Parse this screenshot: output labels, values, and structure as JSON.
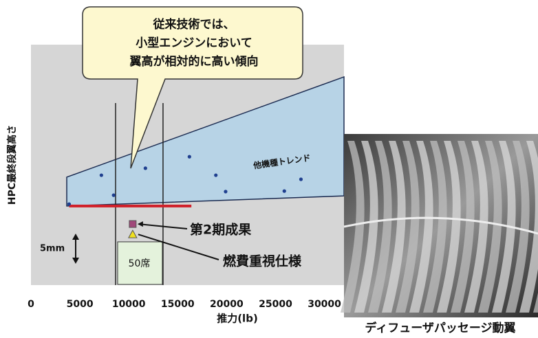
{
  "chart_data": {
    "type": "scatter",
    "y_label": "HPC最終段翼高さ",
    "x_label": "推力(lb)",
    "xlim": [
      0,
      32000
    ],
    "ylim": [
      0,
      100
    ],
    "xticks": [
      0,
      5000,
      10000,
      15000,
      20000,
      25000,
      30000
    ],
    "points": {
      "color": "#1f3f8f",
      "x": [
        3900,
        7200,
        8450,
        11700,
        16200,
        18900,
        19900,
        25900,
        27600
      ],
      "y": [
        33.7,
        45.7,
        37.4,
        48.6,
        53.4,
        45.7,
        38.9,
        39.1,
        44
      ]
    },
    "trend_band": {
      "label": "他機種トレンド",
      "color": "#b7d3e6",
      "x": [
        3660,
        32000
      ],
      "upper": [
        44.9,
        86.6
      ],
      "lower": [
        32.9,
        37.1
      ]
    },
    "baseline": {
      "color": "#d0202a",
      "x": [
        3900,
        16400
      ],
      "y": 32.9
    },
    "range_lines": [
      8650,
      13500
    ],
    "results": [
      {
        "label": "第2期成果",
        "x": 10400,
        "y": 25.4,
        "color": "#a0487a",
        "marker": "square"
      },
      {
        "label": "燃費重視仕様",
        "x": 10400,
        "y": 21.1,
        "color": "#f0e020",
        "marker": "triangle"
      }
    ],
    "seat_label": "50席",
    "scale_label": "5mm",
    "callout": [
      "従来技術では、",
      "小型エンジンにおいて",
      "翼高が相対的に高い傾向"
    ],
    "photo_caption": "ディフューザパッセージ動翼"
  }
}
